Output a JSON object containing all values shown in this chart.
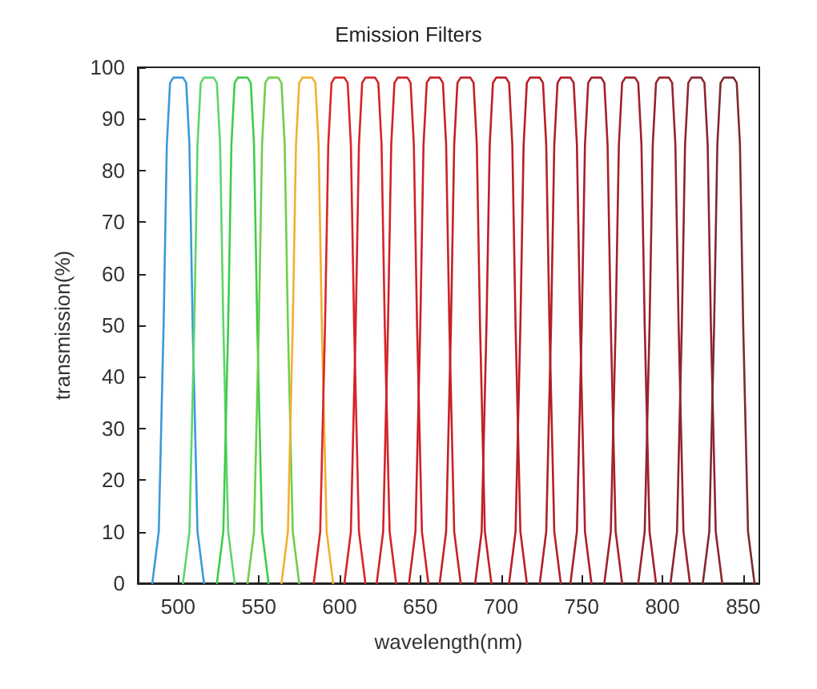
{
  "chart_data": {
    "type": "line",
    "title": "Emission Filters",
    "xlabel": "wavelength(nm)",
    "ylabel": "transmission(%)",
    "xlim": [
      475,
      860
    ],
    "ylim": [
      0,
      100
    ],
    "xticks": [
      500,
      550,
      600,
      650,
      700,
      750,
      800,
      850
    ],
    "yticks": [
      0,
      10,
      20,
      30,
      40,
      50,
      60,
      70,
      80,
      90,
      100
    ],
    "series": [
      {
        "color": "#3a9ad9",
        "x": [
          484,
          488,
          491,
          493,
          495,
          497,
          503,
          505,
          507,
          509,
          512,
          516
        ],
        "values": [
          0,
          10,
          50,
          85,
          97,
          98,
          98,
          97,
          85,
          50,
          10,
          0
        ]
      },
      {
        "color": "#5cd66a",
        "x": [
          503,
          507,
          510,
          512,
          514,
          516,
          522,
          524,
          526,
          528,
          531,
          535
        ],
        "values": [
          0,
          10,
          50,
          85,
          97,
          98,
          98,
          97,
          85,
          50,
          10,
          0
        ]
      },
      {
        "color": "#3fcc4a",
        "x": [
          524,
          528,
          531,
          533,
          535,
          537,
          543,
          545,
          547,
          549,
          552,
          556
        ],
        "values": [
          0,
          10,
          50,
          85,
          97,
          98,
          98,
          97,
          85,
          50,
          10,
          0
        ]
      },
      {
        "color": "#6fcf4a",
        "x": [
          543,
          547,
          550,
          552,
          554,
          556,
          562,
          564,
          566,
          568,
          571,
          575
        ],
        "values": [
          0,
          10,
          50,
          85,
          97,
          98,
          98,
          97,
          85,
          50,
          10,
          0
        ]
      },
      {
        "color": "#f0b030",
        "x": [
          564,
          568,
          571,
          573,
          575,
          577,
          583,
          585,
          587,
          589,
          592,
          596
        ],
        "values": [
          0,
          10,
          50,
          85,
          97,
          98,
          98,
          97,
          85,
          50,
          10,
          0
        ]
      },
      {
        "color": "#d8262a",
        "x": [
          584,
          588,
          591,
          593,
          595,
          597,
          603,
          605,
          607,
          609,
          612,
          616
        ],
        "values": [
          0,
          10,
          50,
          85,
          97,
          98,
          98,
          97,
          85,
          50,
          10,
          0
        ]
      },
      {
        "color": "#d42429",
        "x": [
          603,
          607,
          610,
          612,
          614,
          616,
          622,
          624,
          626,
          628,
          631,
          635
        ],
        "values": [
          0,
          10,
          50,
          85,
          97,
          98,
          98,
          97,
          85,
          50,
          10,
          0
        ]
      },
      {
        "color": "#cf2228",
        "x": [
          623,
          627,
          630,
          632,
          634,
          636,
          642,
          644,
          646,
          648,
          651,
          655
        ],
        "values": [
          0,
          10,
          50,
          85,
          97,
          98,
          98,
          97,
          85,
          50,
          10,
          0
        ]
      },
      {
        "color": "#ca2127",
        "x": [
          643,
          647,
          650,
          652,
          654,
          656,
          662,
          664,
          666,
          668,
          671,
          675
        ],
        "values": [
          0,
          10,
          50,
          85,
          97,
          98,
          98,
          97,
          85,
          50,
          10,
          0
        ]
      },
      {
        "color": "#c42026",
        "x": [
          662,
          666,
          669,
          671,
          673,
          675,
          681,
          683,
          685,
          687,
          690,
          694
        ],
        "values": [
          0,
          10,
          50,
          85,
          97,
          98,
          98,
          97,
          85,
          50,
          10,
          0
        ]
      },
      {
        "color": "#be1f26",
        "x": [
          684,
          688,
          691,
          693,
          695,
          697,
          703,
          705,
          707,
          709,
          712,
          716
        ],
        "values": [
          0,
          10,
          50,
          85,
          97,
          98,
          98,
          97,
          85,
          50,
          10,
          0
        ]
      },
      {
        "color": "#b71e27",
        "x": [
          705,
          709,
          712,
          714,
          716,
          718,
          724,
          726,
          728,
          730,
          733,
          737
        ],
        "values": [
          0,
          10,
          50,
          85,
          97,
          98,
          98,
          97,
          85,
          50,
          10,
          0
        ]
      },
      {
        "color": "#b01e28",
        "x": [
          724,
          728,
          731,
          733,
          735,
          737,
          743,
          745,
          747,
          749,
          752,
          756
        ],
        "values": [
          0,
          10,
          50,
          85,
          97,
          98,
          98,
          97,
          85,
          50,
          10,
          0
        ]
      },
      {
        "color": "#a81f2a",
        "x": [
          743,
          747,
          750,
          752,
          754,
          756,
          762,
          764,
          766,
          768,
          771,
          775
        ],
        "values": [
          0,
          10,
          50,
          85,
          97,
          98,
          98,
          97,
          85,
          50,
          10,
          0
        ]
      },
      {
        "color": "#a0212c",
        "x": [
          764,
          768,
          771,
          773,
          775,
          777,
          783,
          785,
          787,
          789,
          792,
          796
        ],
        "values": [
          0,
          10,
          50,
          85,
          97,
          98,
          98,
          97,
          85,
          50,
          10,
          0
        ]
      },
      {
        "color": "#97232d",
        "x": [
          785,
          789,
          792,
          794,
          796,
          798,
          804,
          806,
          808,
          810,
          813,
          817
        ],
        "values": [
          0,
          10,
          50,
          85,
          97,
          98,
          98,
          97,
          85,
          50,
          10,
          0
        ]
      },
      {
        "color": "#8c2530",
        "x": [
          805,
          809,
          812,
          814,
          816,
          818,
          824,
          826,
          828,
          830,
          833,
          837
        ],
        "values": [
          0,
          10,
          50,
          85,
          97,
          98,
          98,
          97,
          85,
          50,
          10,
          0
        ]
      },
      {
        "color": "#7e2a30",
        "x": [
          825,
          829,
          832,
          834,
          836,
          838,
          844,
          846,
          848,
          850,
          853,
          857
        ],
        "values": [
          0,
          10,
          50,
          85,
          97,
          98,
          98,
          97,
          85,
          50,
          10,
          0
        ]
      }
    ]
  }
}
